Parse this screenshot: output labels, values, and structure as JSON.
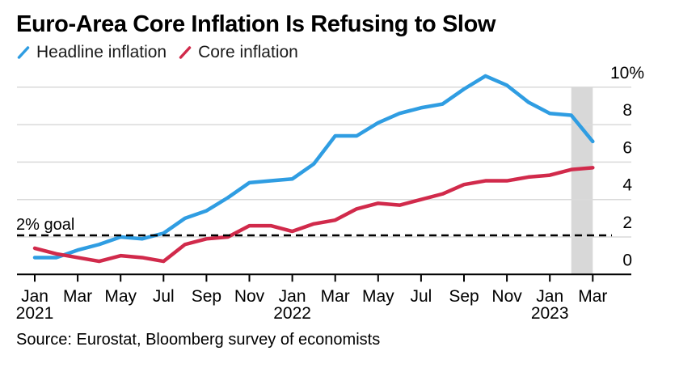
{
  "title": "Euro-Area Core Inflation Is Refusing to Slow",
  "legend": [
    {
      "label": "Headline inflation",
      "color": "#2f9de2"
    },
    {
      "label": "Core inflation",
      "color": "#d12a4b"
    }
  ],
  "source": "Source: Eurostat, Bloomberg survey of economists",
  "chart_data": {
    "type": "line",
    "x": [
      "Jan 2021",
      "Feb 2021",
      "Mar 2021",
      "Apr 2021",
      "May 2021",
      "Jun 2021",
      "Jul 2021",
      "Aug 2021",
      "Sep 2021",
      "Oct 2021",
      "Nov 2021",
      "Dec 2021",
      "Jan 2022",
      "Feb 2022",
      "Mar 2022",
      "Apr 2022",
      "May 2022",
      "Jun 2022",
      "Jul 2022",
      "Aug 2022",
      "Sep 2022",
      "Oct 2022",
      "Nov 2022",
      "Dec 2022",
      "Jan 2023",
      "Feb 2023",
      "Mar 2023"
    ],
    "series": [
      {
        "name": "Headline inflation",
        "color": "#2f9de2",
        "values": [
          0.9,
          0.9,
          1.3,
          1.6,
          2.0,
          1.9,
          2.2,
          3.0,
          3.4,
          4.1,
          4.9,
          5.0,
          5.1,
          5.9,
          7.4,
          7.4,
          8.1,
          8.6,
          8.9,
          9.1,
          9.9,
          10.6,
          10.1,
          9.2,
          8.6,
          8.5,
          7.1
        ]
      },
      {
        "name": "Core inflation",
        "color": "#d12a4b",
        "values": [
          1.4,
          1.1,
          0.9,
          0.7,
          1.0,
          0.9,
          0.7,
          1.6,
          1.9,
          2.0,
          2.6,
          2.6,
          2.3,
          2.7,
          2.9,
          3.5,
          3.8,
          3.7,
          4.0,
          4.3,
          4.8,
          5.0,
          5.0,
          5.2,
          5.3,
          5.6,
          5.7
        ]
      }
    ],
    "ylim": [
      0,
      10
    ],
    "yticks": [
      0,
      2,
      4,
      6,
      8,
      10
    ],
    "ytick_labels": [
      "0",
      "2",
      "4",
      "6",
      "8",
      "10%"
    ],
    "xticks": [
      {
        "index": 0,
        "month": "Jan",
        "year": "2021"
      },
      {
        "index": 2,
        "month": "Mar"
      },
      {
        "index": 4,
        "month": "May"
      },
      {
        "index": 6,
        "month": "Jul"
      },
      {
        "index": 8,
        "month": "Sep"
      },
      {
        "index": 10,
        "month": "Nov"
      },
      {
        "index": 12,
        "month": "Jan",
        "year": "2022"
      },
      {
        "index": 14,
        "month": "Mar"
      },
      {
        "index": 16,
        "month": "May"
      },
      {
        "index": 18,
        "month": "Jul"
      },
      {
        "index": 20,
        "month": "Sep"
      },
      {
        "index": 22,
        "month": "Nov"
      },
      {
        "index": 24,
        "month": "Jan",
        "year": "2023"
      },
      {
        "index": 26,
        "month": "Mar"
      }
    ],
    "goal_line": {
      "value": 2,
      "label": "2% goal",
      "style": "dashed",
      "color": "#000000"
    },
    "forecast_band": {
      "from_index": 25,
      "to_index": 26,
      "color": "#d8d8d8"
    },
    "grid": "horizontal",
    "grid_color": "#dadada",
    "axis_color": "#000000",
    "legend_position": "top"
  }
}
